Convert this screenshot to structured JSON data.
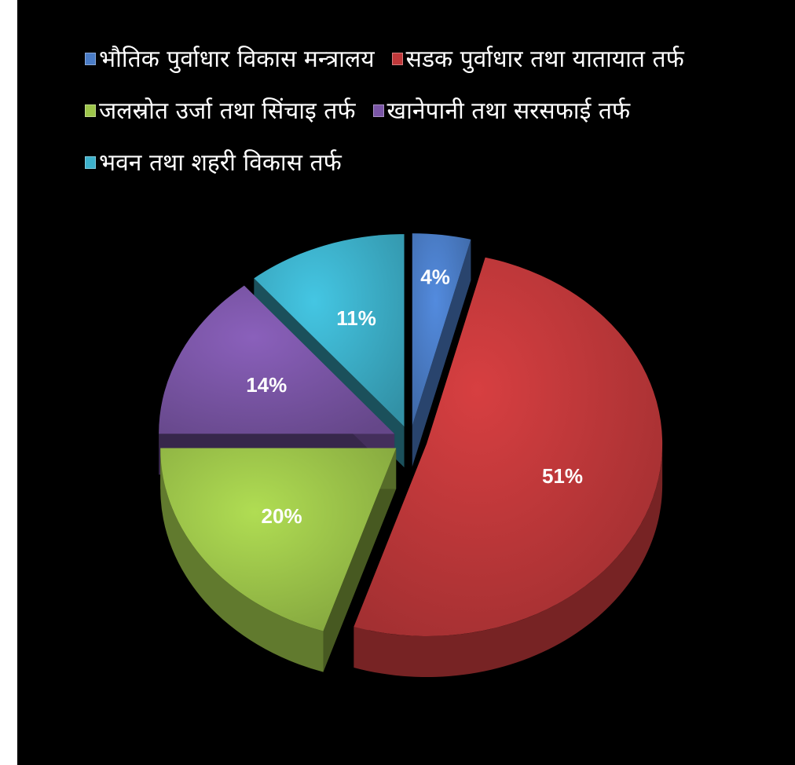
{
  "chart_data": {
    "type": "pie",
    "title": "",
    "legend_position": "top",
    "slices": [
      {
        "label": "भौतिक पुर्वाधार विकास मन्त्रालय",
        "value": 4,
        "value_label": "4%",
        "color": "#4a7cc6"
      },
      {
        "label": "सडक पुर्वाधार तथा यातायात तर्फ",
        "value": 51,
        "value_label": "51%",
        "color": "#c0383a"
      },
      {
        "label": "जलस्रोत उर्जा तथा सिंचाइ तर्फ",
        "value": 20,
        "value_label": "20%",
        "color": "#9dc54a"
      },
      {
        "label": "खानेपानी तथा सरसफाई तर्फ",
        "value": 14,
        "value_label": "14%",
        "color": "#7b56a7"
      },
      {
        "label": "भवन तथा शहरी विकास तर्फ",
        "value": 11,
        "value_label": "11%",
        "color": "#3db1cb"
      }
    ]
  }
}
